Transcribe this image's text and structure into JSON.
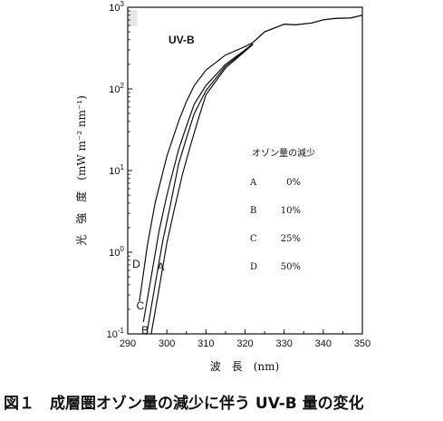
{
  "chart_data": {
    "type": "line",
    "title": "",
    "xlabel": "波　長　(nm)",
    "ylabel": "光　強　度　(mW m⁻² nm⁻¹)",
    "xlim": [
      290,
      350
    ],
    "ylim": [
      0.1,
      1000
    ],
    "yscale": "log",
    "x_ticks": [
      290,
      300,
      310,
      320,
      330,
      340,
      350
    ],
    "y_ticks": [
      {
        "value": 0.1,
        "base": "10",
        "exp": "-1"
      },
      {
        "value": 1,
        "base": "10",
        "exp": "0"
      },
      {
        "value": 10,
        "base": "10",
        "exp": "1"
      },
      {
        "value": 100,
        "base": "10",
        "exp": "2"
      },
      {
        "value": 1000,
        "base": "10",
        "exp": "3"
      }
    ],
    "band_label": "UV-B",
    "band_range": [
      290,
      292
    ],
    "legend": {
      "title": "オゾン量の減少",
      "entries": [
        {
          "label": "A",
          "value": "0%"
        },
        {
          "label": "B",
          "value": "10%"
        },
        {
          "label": "C",
          "value": "25%"
        },
        {
          "label": "D",
          "value": "50%"
        }
      ]
    },
    "series": [
      {
        "name": "D",
        "x": [
          293,
          295,
          297,
          300,
          303,
          305,
          307,
          310,
          315,
          320,
          322
        ],
        "y": [
          0.25,
          1.2,
          4,
          15,
          40,
          70,
          110,
          170,
          260,
          330,
          370
        ]
      },
      {
        "name": "C",
        "x": [
          294,
          296,
          298,
          300,
          303,
          305,
          307,
          310,
          315,
          320,
          322
        ],
        "y": [
          0.14,
          0.5,
          1.8,
          5,
          18,
          35,
          65,
          110,
          200,
          300,
          360
        ]
      },
      {
        "name": "B",
        "x": [
          295,
          297,
          299,
          301,
          303,
          305,
          307,
          310,
          315,
          320,
          322
        ],
        "y": [
          0.11,
          0.4,
          1.4,
          4,
          12,
          25,
          50,
          95,
          190,
          295,
          355
        ]
      },
      {
        "name": "A",
        "x": [
          296,
          298,
          300,
          302,
          304,
          306,
          308,
          310,
          315,
          320,
          322
        ],
        "y": [
          0.1,
          0.35,
          1.3,
          3.5,
          9,
          20,
          42,
          85,
          180,
          290,
          350
        ]
      }
    ],
    "shared_tail": {
      "x": [
        322,
        325,
        330,
        333,
        337,
        340,
        343,
        347,
        350
      ],
      "y": [
        370,
        500,
        620,
        610,
        640,
        700,
        730,
        740,
        800
      ]
    },
    "curve_labels": [
      {
        "name": "D",
        "x": 291.2,
        "y": 0.65
      },
      {
        "name": "C",
        "x": 292.2,
        "y": 0.2
      },
      {
        "name": "B",
        "x": 293.5,
        "y": 0.1
      },
      {
        "name": "A",
        "x": 297.5,
        "y": 0.6
      }
    ]
  },
  "caption": "図１　成層圏オゾン量の減少に伴う UV-B 量の変化"
}
